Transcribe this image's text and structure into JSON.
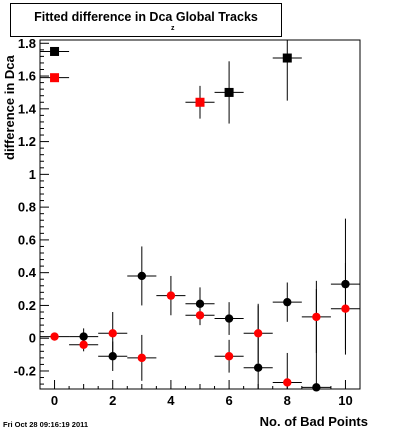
{
  "chart_data": {
    "type": "scatter",
    "title": "Fitted difference in Dca",
    "title_subscript": "z",
    "title_suffix": "Global Tracks",
    "ylabel": "difference in Dca",
    "xlabel": "No. of Bad Points",
    "xlim": [
      -0.5,
      10.5
    ],
    "ylim": [
      -0.31,
      1.82
    ],
    "x_ticks": [
      0,
      2,
      4,
      6,
      8,
      10
    ],
    "y_ticks": [
      -0.2,
      0,
      0.2,
      0.4,
      0.6,
      0.8,
      1,
      1.2,
      1.4,
      1.6,
      1.8
    ],
    "y_tick_labels": [
      "-0.2",
      "0",
      "0.2",
      "0.4",
      "0.6",
      "0.8",
      "1",
      "1.2",
      "1.4",
      "1.6",
      "1.8"
    ],
    "series": [
      {
        "marker": "circle",
        "color": "#000000",
        "x": [
          1,
          2,
          3,
          5,
          6,
          7,
          8,
          9,
          10
        ],
        "y": [
          0.01,
          -0.11,
          0.38,
          0.21,
          0.12,
          -0.18,
          0.22,
          -0.3,
          0.33
        ],
        "yerr": [
          0.05,
          0.09,
          0.18,
          0.1,
          0.1,
          0.38,
          0.12,
          0.6,
          0.4
        ]
      },
      {
        "marker": "circle",
        "color": "#ff0000",
        "x": [
          0,
          1,
          2,
          3,
          4,
          5,
          6,
          7,
          8,
          9,
          10
        ],
        "y": [
          0.01,
          -0.04,
          0.03,
          -0.12,
          0.26,
          0.14,
          -0.11,
          0.03,
          -0.27,
          0.13,
          0.18
        ],
        "yerr": [
          0.0,
          0.04,
          0.13,
          0.14,
          0.12,
          0.06,
          0.1,
          0.18,
          0.18,
          0.22,
          0.28
        ]
      },
      {
        "marker": "square",
        "color": "#000000",
        "x": [
          0,
          6,
          8
        ],
        "y": [
          1.75,
          1.5,
          1.71
        ],
        "yerr": [
          0.0,
          0.19,
          0.26
        ]
      },
      {
        "marker": "square",
        "color": "#ff0000",
        "x": [
          0,
          5
        ],
        "y": [
          1.59,
          1.44
        ],
        "yerr": [
          0.0,
          0.1
        ]
      }
    ],
    "grid": false,
    "legend": "none"
  },
  "footer": {
    "timestamp": "Fri Oct 28 09:16:19 2011"
  }
}
